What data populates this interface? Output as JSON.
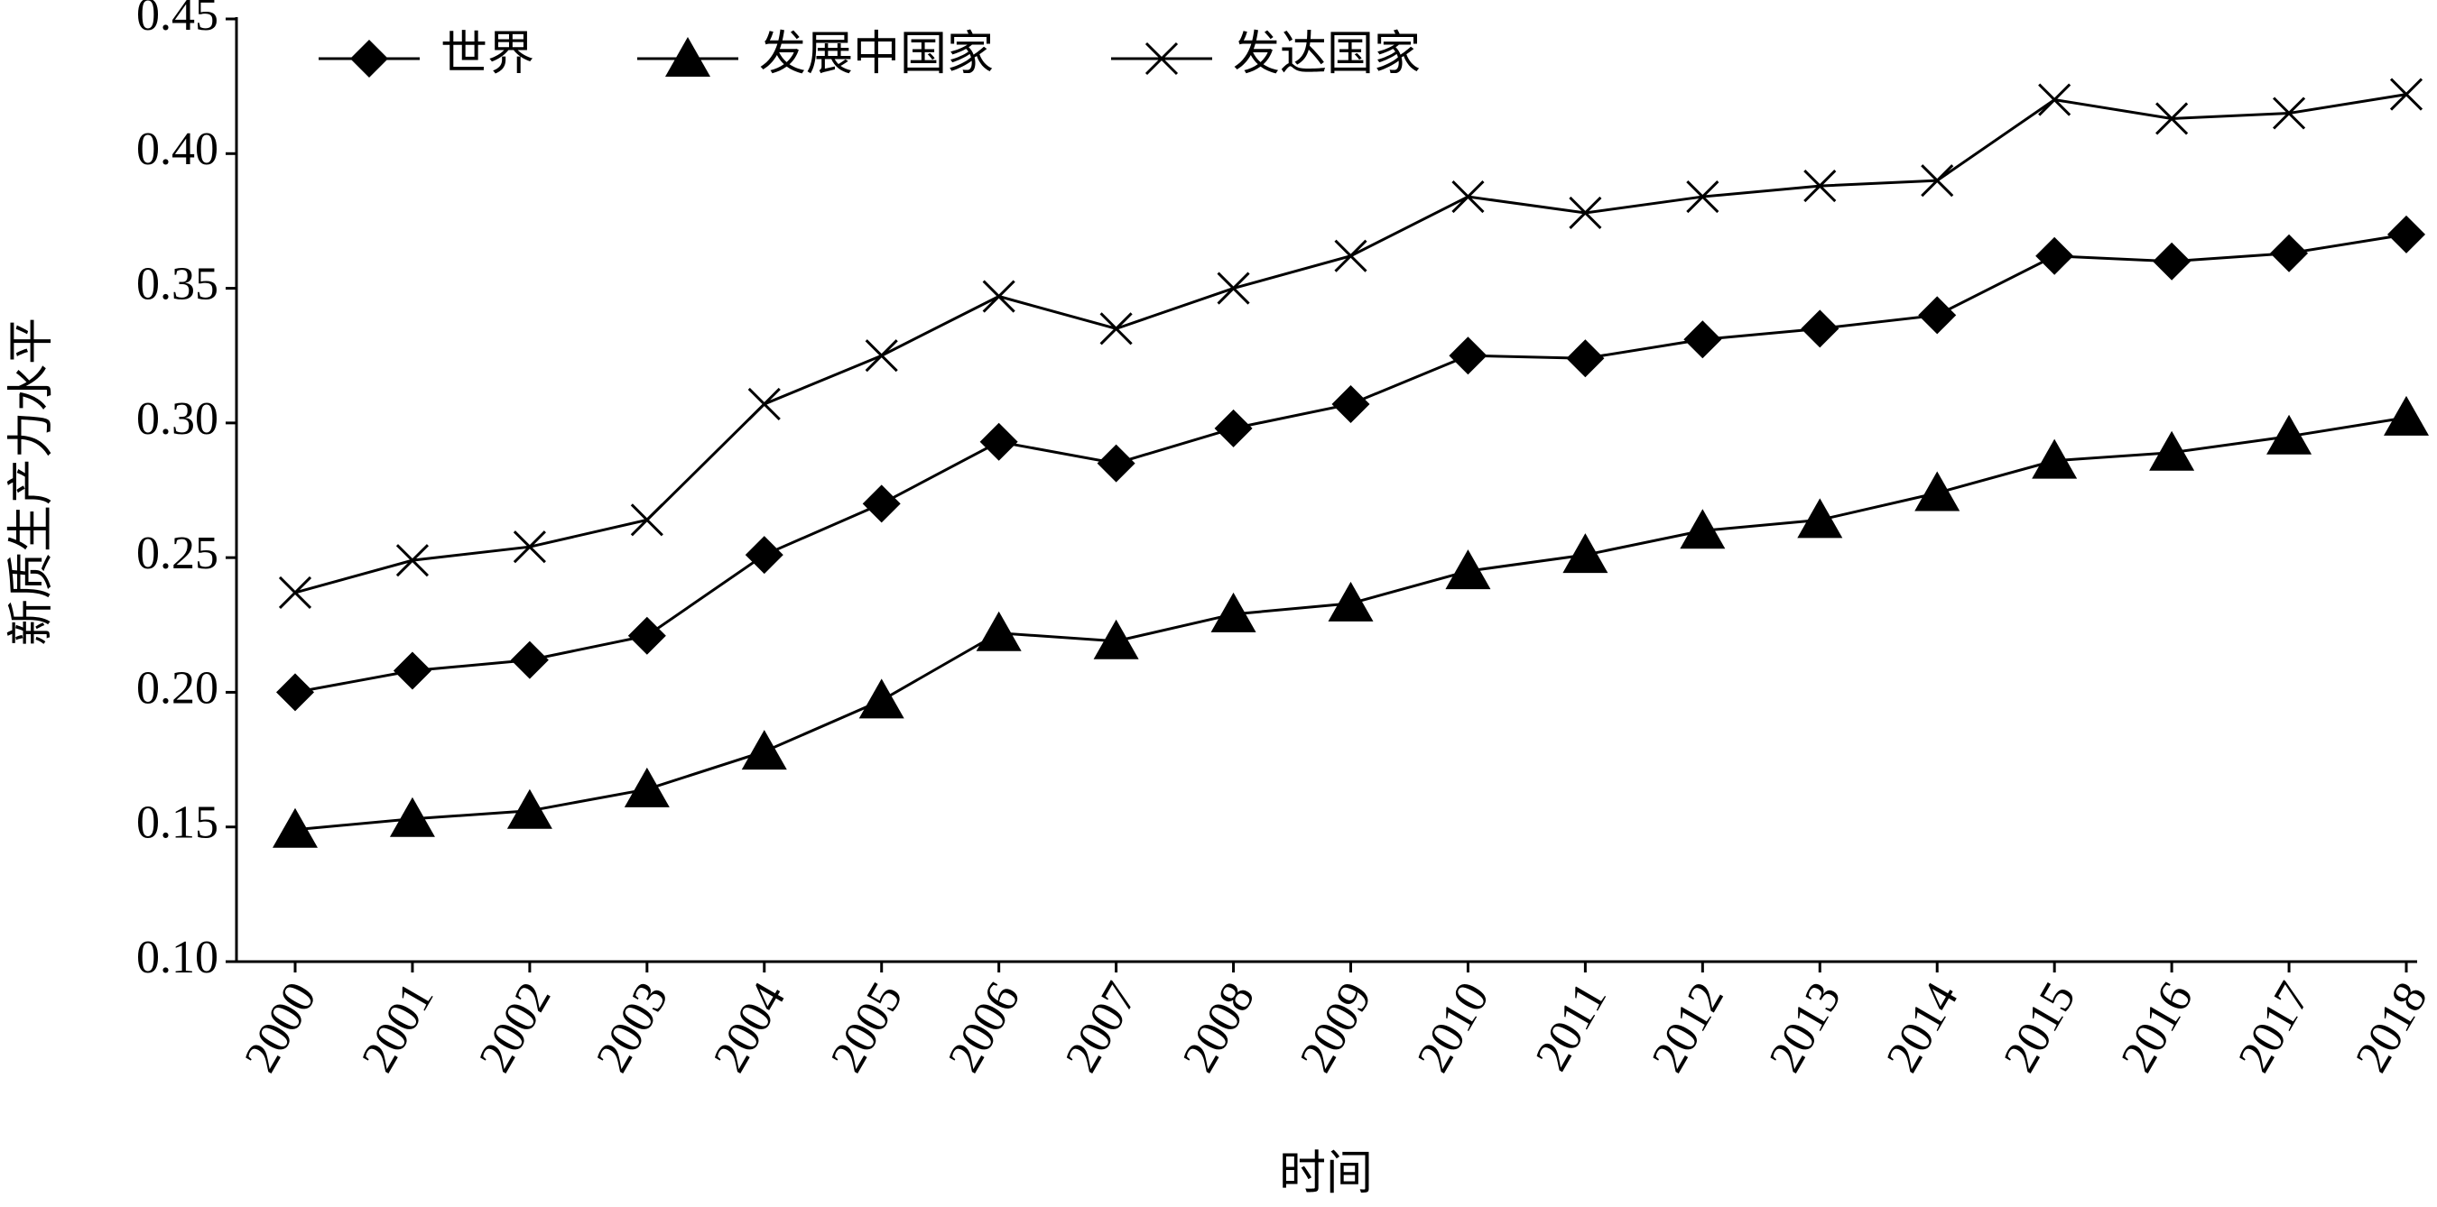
{
  "chart_data": {
    "type": "line",
    "x_label": "时间",
    "y_label": "新质生产力水平",
    "categories": [
      "2000",
      "2001",
      "2002",
      "2003",
      "2004",
      "2005",
      "2006",
      "2007",
      "2008",
      "2009",
      "2010",
      "2011",
      "2012",
      "2013",
      "2014",
      "2015",
      "2016",
      "2017",
      "2018"
    ],
    "series": [
      {
        "name": "世界",
        "color": "#000000",
        "marker": "diamond",
        "values": [
          0.2,
          0.208,
          0.212,
          0.221,
          0.251,
          0.27,
          0.293,
          0.285,
          0.298,
          0.307,
          0.325,
          0.324,
          0.331,
          0.335,
          0.34,
          0.362,
          0.36,
          0.363,
          0.37
        ]
      },
      {
        "name": "发展中国家",
        "color": "#000000",
        "marker": "triangle",
        "values": [
          0.149,
          0.153,
          0.156,
          0.164,
          0.178,
          0.197,
          0.222,
          0.219,
          0.229,
          0.233,
          0.245,
          0.251,
          0.26,
          0.264,
          0.274,
          0.286,
          0.289,
          0.295,
          0.302
        ]
      },
      {
        "name": "发达国家",
        "color": "#000000",
        "marker": "x",
        "values": [
          0.237,
          0.249,
          0.254,
          0.264,
          0.307,
          0.325,
          0.347,
          0.335,
          0.35,
          0.362,
          0.384,
          0.378,
          0.384,
          0.388,
          0.39,
          0.42,
          0.413,
          0.415,
          0.422
        ]
      }
    ],
    "ylim": [
      0.1,
      0.45
    ],
    "yticks": [
      {
        "value": 0.1,
        "label": "0.10"
      },
      0.15,
      {
        "value": 0.2,
        "label": "0.20"
      },
      0.25,
      {
        "value": 0.3,
        "label": "0.30"
      },
      0.35,
      {
        "value": 0.4,
        "label": "0.40"
      },
      0.45
    ],
    "grid": false,
    "legend": "top-left"
  }
}
